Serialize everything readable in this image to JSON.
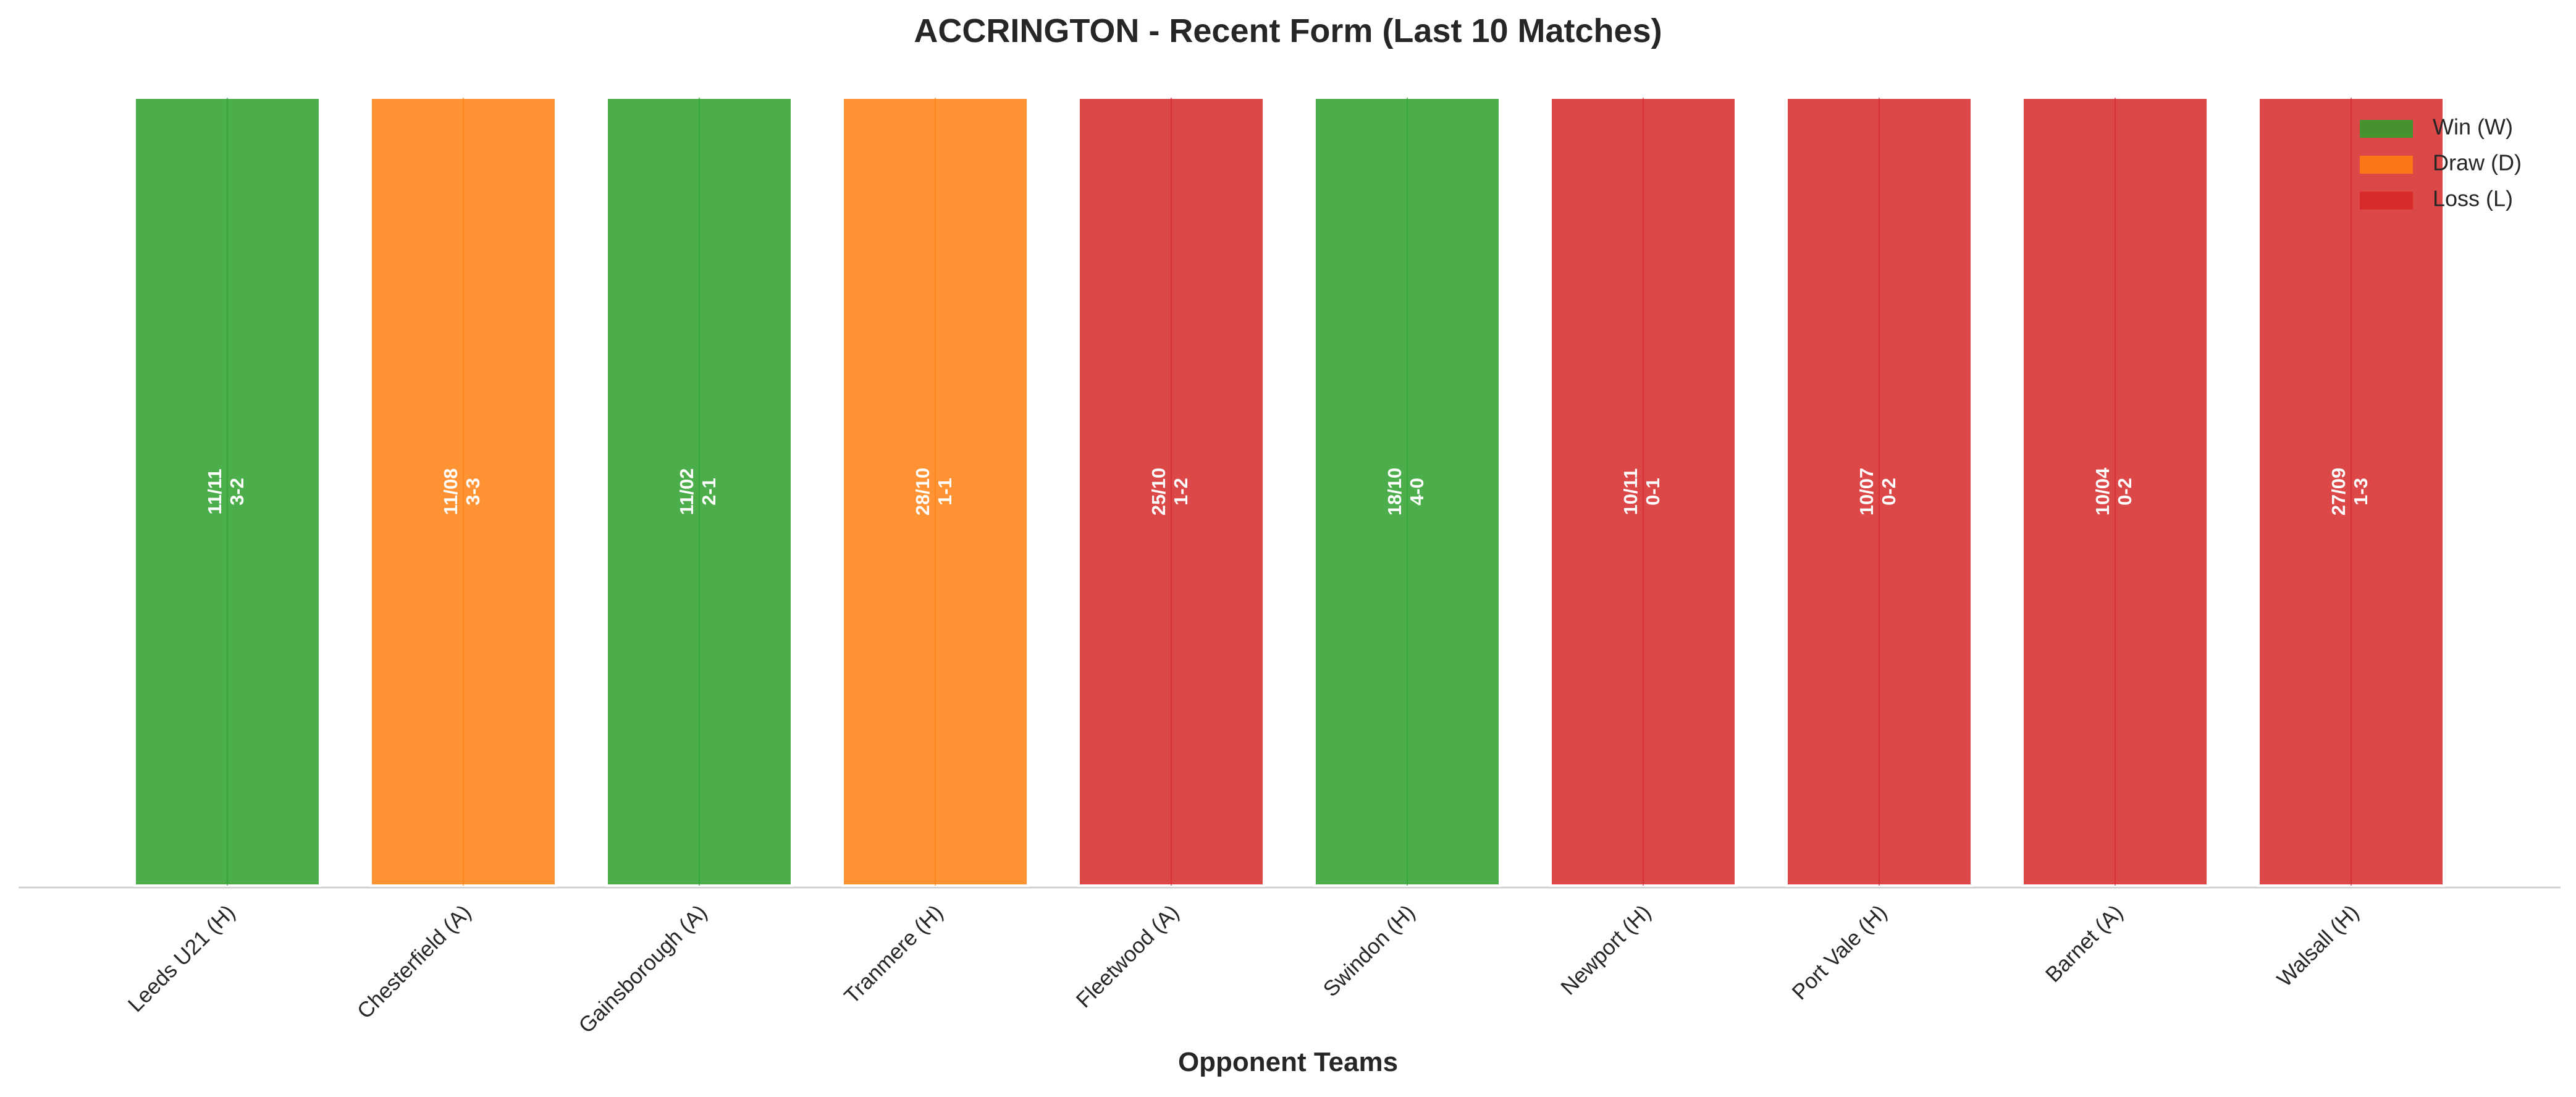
{
  "chart_data": {
    "type": "bar",
    "title": "ACCRINGTON - Recent Form (Last 10 Matches)",
    "xlabel": "Opponent Teams",
    "ylabel": "",
    "ylim": [
      0,
      1
    ],
    "grid": false,
    "legend_position": "top-right",
    "categories": [
      "Leeds U21 (H)",
      "Chesterfield (A)",
      "Gainsborough (A)",
      "Tranmere (H)",
      "Fleetwood (A)",
      "Swindon (H)",
      "Newport (H)",
      "Port Vale (H)",
      "Barnet (A)",
      "Walsall (H)"
    ],
    "values": [
      1,
      1,
      1,
      1,
      1,
      1,
      1,
      1,
      1,
      1
    ],
    "results": [
      "W",
      "D",
      "W",
      "D",
      "L",
      "W",
      "L",
      "L",
      "L",
      "L"
    ],
    "dates": [
      "11/11",
      "11/08",
      "11/02",
      "28/10",
      "25/10",
      "18/10",
      "10/11",
      "10/07",
      "10/04",
      "27/09"
    ],
    "scores": [
      "3-2",
      "3-3",
      "2-1",
      "1-1",
      "1-2",
      "4-0",
      "0-1",
      "0-2",
      "0-2",
      "1-3"
    ],
    "legend": [
      {
        "key": "W",
        "label": "Win (W)"
      },
      {
        "key": "D",
        "label": "Draw (D)"
      },
      {
        "key": "L",
        "label": "Loss (L)"
      }
    ],
    "colors": {
      "W": "#2ca02c",
      "D": "#ff7f0e",
      "L": "#d62728"
    }
  }
}
